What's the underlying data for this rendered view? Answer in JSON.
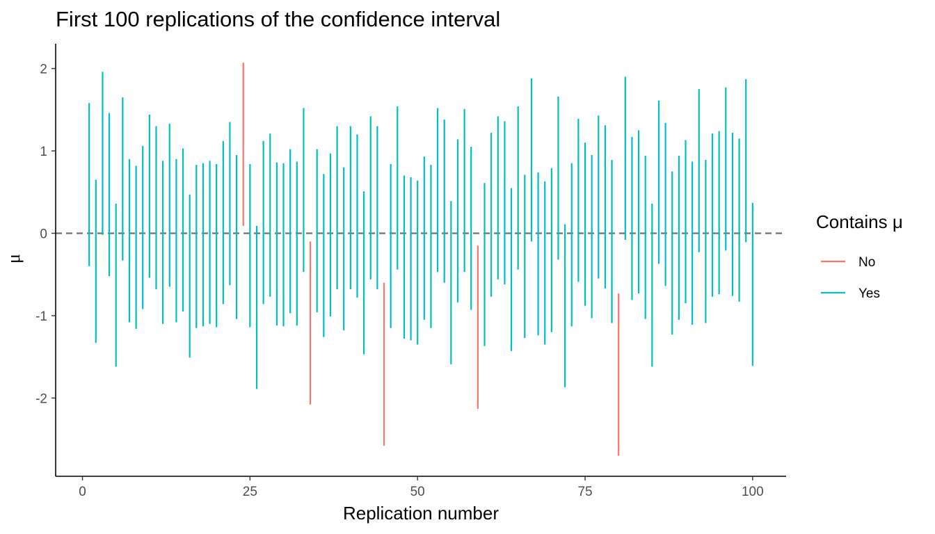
{
  "chart_data": {
    "type": "errorbar",
    "title": "First 100 replications of the confidence interval",
    "xlabel": "Replication number",
    "ylabel": "μ",
    "xlim": [
      -4,
      105
    ],
    "ylim": [
      -2.95,
      2.3
    ],
    "x_ticks": [
      0,
      25,
      50,
      75,
      100
    ],
    "x_tick_labels": [
      "0",
      "25",
      "50",
      "75",
      "100"
    ],
    "y_ticks": [
      -2,
      -1,
      0,
      1,
      2
    ],
    "y_tick_labels": [
      "-2",
      "-1",
      "0",
      "1",
      "2"
    ],
    "reference_line": {
      "y": 0,
      "style": "dashed",
      "color": "#6e6e6e"
    },
    "grid": false,
    "legend": {
      "title": "Contains μ",
      "position": "right",
      "entries": [
        {
          "label": "No",
          "color": "#F8766D"
        },
        {
          "label": "Yes",
          "color": "#00BFC4"
        }
      ]
    },
    "intervals": [
      [
        1,
        -0.4,
        1.58,
        "Yes"
      ],
      [
        2,
        -1.33,
        0.65,
        "Yes"
      ],
      [
        3,
        -0.02,
        1.96,
        "Yes"
      ],
      [
        4,
        -0.52,
        1.46,
        "Yes"
      ],
      [
        5,
        -1.62,
        0.36,
        "Yes"
      ],
      [
        6,
        -0.33,
        1.65,
        "Yes"
      ],
      [
        7,
        -1.08,
        0.9,
        "Yes"
      ],
      [
        8,
        -1.16,
        0.82,
        "Yes"
      ],
      [
        9,
        -0.92,
        1.06,
        "Yes"
      ],
      [
        10,
        -0.54,
        1.44,
        "Yes"
      ],
      [
        11,
        -0.68,
        1.3,
        "Yes"
      ],
      [
        12,
        -1.1,
        0.88,
        "Yes"
      ],
      [
        13,
        -0.65,
        1.33,
        "Yes"
      ],
      [
        14,
        -1.08,
        0.9,
        "Yes"
      ],
      [
        15,
        -0.95,
        1.03,
        "Yes"
      ],
      [
        16,
        -1.51,
        0.47,
        "Yes"
      ],
      [
        17,
        -1.15,
        0.83,
        "Yes"
      ],
      [
        18,
        -1.13,
        0.85,
        "Yes"
      ],
      [
        19,
        -1.1,
        0.88,
        "Yes"
      ],
      [
        20,
        -1.14,
        0.84,
        "Yes"
      ],
      [
        21,
        -0.86,
        1.12,
        "Yes"
      ],
      [
        22,
        -0.63,
        1.35,
        "Yes"
      ],
      [
        23,
        -1.04,
        0.95,
        "Yes"
      ],
      [
        24,
        0.09,
        2.07,
        "No"
      ],
      [
        25,
        -1.14,
        0.84,
        "Yes"
      ],
      [
        26,
        -1.89,
        0.09,
        "Yes"
      ],
      [
        27,
        -0.86,
        1.12,
        "Yes"
      ],
      [
        28,
        -0.77,
        1.21,
        "Yes"
      ],
      [
        29,
        -1.12,
        0.86,
        "Yes"
      ],
      [
        30,
        -1.13,
        0.85,
        "Yes"
      ],
      [
        31,
        -0.97,
        1.02,
        "Yes"
      ],
      [
        32,
        -1.12,
        0.87,
        "Yes"
      ],
      [
        33,
        -0.47,
        1.52,
        "Yes"
      ],
      [
        34,
        -2.08,
        -0.1,
        "No"
      ],
      [
        35,
        -0.96,
        1.02,
        "Yes"
      ],
      [
        36,
        -1.26,
        0.72,
        "Yes"
      ],
      [
        37,
        -1.01,
        0.97,
        "Yes"
      ],
      [
        38,
        -0.68,
        1.3,
        "Yes"
      ],
      [
        39,
        -1.18,
        0.8,
        "Yes"
      ],
      [
        40,
        -0.68,
        1.3,
        "Yes"
      ],
      [
        41,
        -0.78,
        1.2,
        "Yes"
      ],
      [
        42,
        -1.47,
        0.51,
        "Yes"
      ],
      [
        43,
        -0.56,
        1.42,
        "Yes"
      ],
      [
        44,
        -0.68,
        1.3,
        "Yes"
      ],
      [
        45,
        -2.58,
        -0.6,
        "No"
      ],
      [
        46,
        -1.15,
        0.84,
        "Yes"
      ],
      [
        47,
        -0.44,
        1.54,
        "Yes"
      ],
      [
        48,
        -1.28,
        0.7,
        "Yes"
      ],
      [
        49,
        -1.3,
        0.68,
        "Yes"
      ],
      [
        50,
        -1.35,
        0.64,
        "Yes"
      ],
      [
        51,
        -1.05,
        0.93,
        "Yes"
      ],
      [
        52,
        -1.15,
        0.83,
        "Yes"
      ],
      [
        53,
        -0.47,
        1.52,
        "Yes"
      ],
      [
        54,
        -0.6,
        1.38,
        "Yes"
      ],
      [
        55,
        -1.59,
        0.39,
        "Yes"
      ],
      [
        56,
        -0.84,
        1.14,
        "Yes"
      ],
      [
        57,
        -0.47,
        1.51,
        "Yes"
      ],
      [
        58,
        -0.93,
        1.05,
        "Yes"
      ],
      [
        59,
        -2.13,
        -0.15,
        "No"
      ],
      [
        60,
        -1.37,
        0.61,
        "Yes"
      ],
      [
        61,
        -0.77,
        1.22,
        "Yes"
      ],
      [
        62,
        -0.56,
        1.42,
        "Yes"
      ],
      [
        63,
        -0.62,
        1.36,
        "Yes"
      ],
      [
        64,
        -1.43,
        0.55,
        "Yes"
      ],
      [
        65,
        -0.44,
        1.54,
        "Yes"
      ],
      [
        66,
        -1.27,
        0.71,
        "Yes"
      ],
      [
        67,
        -0.1,
        1.88,
        "Yes"
      ],
      [
        68,
        -1.24,
        0.74,
        "Yes"
      ],
      [
        69,
        -1.35,
        0.63,
        "Yes"
      ],
      [
        70,
        -1.2,
        0.79,
        "Yes"
      ],
      [
        71,
        -0.32,
        1.66,
        "Yes"
      ],
      [
        72,
        -1.87,
        0.11,
        "Yes"
      ],
      [
        73,
        -1.13,
        0.85,
        "Yes"
      ],
      [
        74,
        -0.59,
        1.39,
        "Yes"
      ],
      [
        75,
        -0.88,
        1.1,
        "Yes"
      ],
      [
        76,
        -1.03,
        0.95,
        "Yes"
      ],
      [
        77,
        -0.55,
        1.43,
        "Yes"
      ],
      [
        78,
        -0.67,
        1.31,
        "Yes"
      ],
      [
        79,
        -1.09,
        0.89,
        "Yes"
      ],
      [
        80,
        -2.7,
        -0.73,
        "No"
      ],
      [
        81,
        -0.08,
        1.9,
        "Yes"
      ],
      [
        82,
        -0.81,
        1.17,
        "Yes"
      ],
      [
        83,
        -0.73,
        1.25,
        "Yes"
      ],
      [
        84,
        -1.04,
        0.94,
        "Yes"
      ],
      [
        85,
        -1.62,
        0.36,
        "Yes"
      ],
      [
        86,
        -0.37,
        1.61,
        "Yes"
      ],
      [
        87,
        -0.64,
        1.34,
        "Yes"
      ],
      [
        88,
        -1.23,
        0.75,
        "Yes"
      ],
      [
        89,
        -1.05,
        0.94,
        "Yes"
      ],
      [
        90,
        -0.85,
        1.13,
        "Yes"
      ],
      [
        91,
        -1.11,
        0.87,
        "Yes"
      ],
      [
        92,
        -0.23,
        1.75,
        "Yes"
      ],
      [
        93,
        -1.09,
        0.89,
        "Yes"
      ],
      [
        94,
        -0.77,
        1.21,
        "Yes"
      ],
      [
        95,
        -0.74,
        1.24,
        "Yes"
      ],
      [
        96,
        -0.21,
        1.77,
        "Yes"
      ],
      [
        97,
        -0.76,
        1.22,
        "Yes"
      ],
      [
        98,
        -0.83,
        1.15,
        "Yes"
      ],
      [
        99,
        -0.11,
        1.87,
        "Yes"
      ],
      [
        100,
        -1.61,
        0.37,
        "Yes"
      ]
    ]
  }
}
